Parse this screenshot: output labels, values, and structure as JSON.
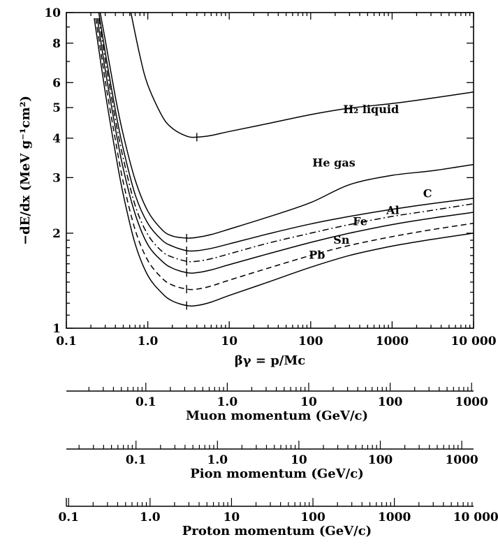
{
  "chart_data": {
    "type": "line",
    "title": "",
    "ylabel": "−dE/dx (MeV g⁻¹cm²)",
    "xlabel": "βγ = p/Mc",
    "xscale": "log",
    "yscale": "log",
    "xlim": [
      0.1,
      10000
    ],
    "ylim": [
      1,
      10
    ],
    "grid": false,
    "x_tick_labels": [
      "0.1",
      "1.0",
      "10",
      "100",
      "1000",
      "10 000"
    ],
    "y_tick_labels": [
      "1",
      "2",
      "3",
      "4",
      "5",
      "6",
      "8",
      "10"
    ],
    "series": [
      {
        "name": "H₂ liquid",
        "style": "solid",
        "x": [
          0.62,
          0.8,
          1.0,
          1.5,
          2.0,
          3.0,
          4.0,
          6.0,
          10,
          30,
          100,
          300,
          1000,
          3000,
          10000
        ],
        "y": [
          10.0,
          7.3,
          5.9,
          4.7,
          4.3,
          4.06,
          4.03,
          4.08,
          4.2,
          4.45,
          4.75,
          4.98,
          5.15,
          5.35,
          5.6
        ]
      },
      {
        "name": "He gas",
        "style": "solid",
        "x": [
          0.26,
          0.3,
          0.4,
          0.5,
          0.7,
          1.0,
          1.5,
          2.0,
          3.0,
          4.0,
          6.0,
          10,
          30,
          100,
          300,
          1000,
          3000,
          10000
        ],
        "y": [
          10.0,
          8.2,
          5.4,
          4.1,
          2.95,
          2.35,
          2.05,
          1.96,
          1.93,
          1.94,
          1.98,
          2.06,
          2.25,
          2.5,
          2.85,
          3.05,
          3.15,
          3.3
        ]
      },
      {
        "name": "C",
        "style": "solid",
        "x": [
          0.25,
          0.3,
          0.4,
          0.5,
          0.7,
          1.0,
          1.5,
          2.0,
          3.0,
          4.0,
          6.0,
          10,
          30,
          100,
          300,
          1000,
          3000,
          10000
        ],
        "y": [
          10.0,
          7.5,
          4.9,
          3.7,
          2.65,
          2.15,
          1.9,
          1.82,
          1.76,
          1.76,
          1.79,
          1.85,
          1.99,
          2.14,
          2.26,
          2.38,
          2.48,
          2.58
        ]
      },
      {
        "name": "Al",
        "style": "dash-dot",
        "x": [
          0.25,
          0.3,
          0.4,
          0.5,
          0.7,
          1.0,
          1.5,
          2.0,
          3.0,
          4.0,
          6.0,
          10,
          30,
          100,
          300,
          1000,
          3000,
          10000
        ],
        "y": [
          9.6,
          7.1,
          4.6,
          3.45,
          2.45,
          1.98,
          1.75,
          1.68,
          1.63,
          1.63,
          1.66,
          1.72,
          1.86,
          2.0,
          2.13,
          2.26,
          2.36,
          2.48
        ]
      },
      {
        "name": "Fe",
        "style": "solid",
        "x": [
          0.24,
          0.3,
          0.4,
          0.5,
          0.7,
          1.0,
          1.5,
          2.0,
          3.0,
          4.0,
          6.0,
          10,
          30,
          100,
          300,
          1000,
          3000,
          10000
        ],
        "y": [
          9.6,
          6.6,
          4.3,
          3.2,
          2.3,
          1.84,
          1.63,
          1.55,
          1.5,
          1.5,
          1.53,
          1.59,
          1.72,
          1.87,
          2.0,
          2.13,
          2.23,
          2.33
        ]
      },
      {
        "name": "Sn",
        "style": "dashed",
        "x": [
          0.23,
          0.3,
          0.4,
          0.5,
          0.7,
          1.0,
          1.5,
          2.0,
          3.0,
          4.0,
          6.0,
          10,
          30,
          100,
          300,
          1000,
          3000,
          10000
        ],
        "y": [
          9.6,
          6.1,
          3.95,
          2.9,
          2.05,
          1.64,
          1.44,
          1.37,
          1.33,
          1.33,
          1.36,
          1.42,
          1.55,
          1.7,
          1.83,
          1.95,
          2.05,
          2.15
        ]
      },
      {
        "name": "Pb",
        "style": "solid",
        "x": [
          0.22,
          0.3,
          0.4,
          0.5,
          0.7,
          1.0,
          1.5,
          2.0,
          3.0,
          4.0,
          6.0,
          10,
          30,
          100,
          300,
          1000,
          3000,
          10000
        ],
        "y": [
          9.6,
          5.6,
          3.6,
          2.65,
          1.85,
          1.47,
          1.29,
          1.22,
          1.18,
          1.18,
          1.21,
          1.27,
          1.4,
          1.56,
          1.7,
          1.82,
          1.91,
          2.0
        ]
      }
    ],
    "minima_markers": [
      {
        "series": "H₂ liquid",
        "x": 4.0,
        "y": 4.03
      },
      {
        "series": "He gas",
        "x": 3.0,
        "y": 1.93
      },
      {
        "series": "C",
        "x": 3.0,
        "y": 1.76
      },
      {
        "series": "Al",
        "x": 3.0,
        "y": 1.63
      },
      {
        "series": "Fe",
        "x": 3.0,
        "y": 1.5
      },
      {
        "series": "Sn",
        "x": 3.0,
        "y": 1.33
      },
      {
        "series": "Pb",
        "x": 3.0,
        "y": 1.18
      }
    ],
    "curve_labels": [
      {
        "text": "H₂ liquid",
        "x": 250,
        "y": 4.8
      },
      {
        "text": "He gas",
        "x": 105,
        "y": 3.25
      },
      {
        "text": "C",
        "x": 2400,
        "y": 2.6
      },
      {
        "text": "Al",
        "x": 850,
        "y": 2.3
      },
      {
        "text": "Fe",
        "x": 330,
        "y": 2.12
      },
      {
        "text": "Sn",
        "x": 190,
        "y": 1.85
      },
      {
        "text": "Pb",
        "x": 95,
        "y": 1.66
      }
    ],
    "momentum_scales": [
      {
        "title": "Muon momentum (GeV/c)",
        "bg_min": 0.1,
        "bg_max": 10000,
        "mass_gev": 0.1057,
        "labels": [
          "0.1",
          "1.0",
          "10",
          "100",
          "1000"
        ]
      },
      {
        "title": "Pion momentum (GeV/c)",
        "bg_min": 0.1,
        "bg_max": 10000,
        "mass_gev": 0.1396,
        "labels": [
          "0.1",
          "1.0",
          "10",
          "100",
          "1000"
        ]
      },
      {
        "title": "Proton momentum (GeV/c)",
        "bg_min": 0.1,
        "bg_max": 10000,
        "mass_gev": 0.938,
        "labels": [
          "0.1",
          "1.0",
          "10",
          "100",
          "1000",
          "10 000"
        ]
      }
    ]
  }
}
